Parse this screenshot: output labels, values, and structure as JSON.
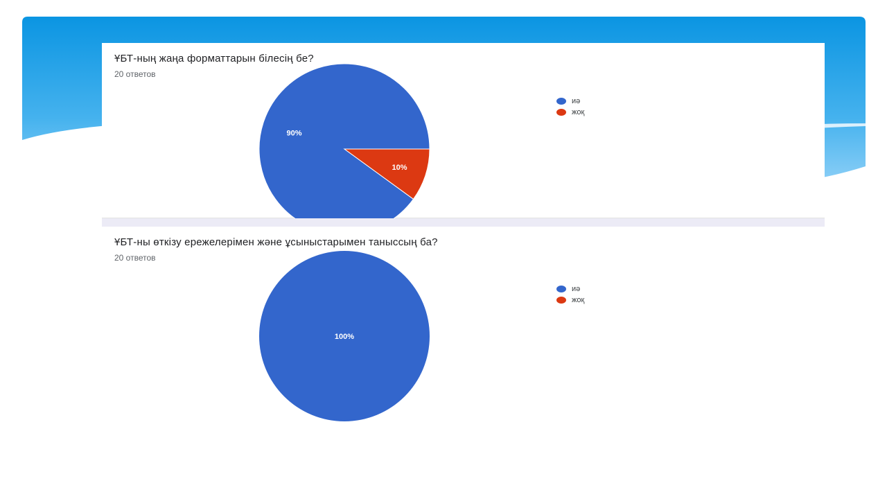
{
  "colors": {
    "yes": "#3366cc",
    "no": "#dc3912",
    "header_top": "#0b95e2",
    "header_bottom": "#8fd0f7"
  },
  "charts": [
    {
      "title": "ҰБТ-ның жаңа форматтарын білесің бе?",
      "responses": "20 ответов",
      "legend": [
        "иә",
        "жоқ"
      ]
    },
    {
      "title": "ҰБТ-ны өткізу ережелерімен және ұсыныстарымен таныссың ба?",
      "responses": "20 ответов",
      "legend": [
        "иә",
        "жоқ"
      ]
    }
  ],
  "chart_data": [
    {
      "type": "pie",
      "title": "ҰБТ-ның жаңа форматтарын білесің бе?",
      "categories": [
        "иә",
        "жоқ"
      ],
      "values": [
        90,
        10
      ],
      "labels": [
        "90%",
        "10%"
      ],
      "legend_position": "right"
    },
    {
      "type": "pie",
      "title": "ҰБТ-ны өткізу ережелерімен және ұсыныстарымен таныссың ба?",
      "categories": [
        "иә",
        "жоқ"
      ],
      "values": [
        100,
        0
      ],
      "labels": [
        "100%"
      ],
      "legend_position": "right"
    }
  ]
}
